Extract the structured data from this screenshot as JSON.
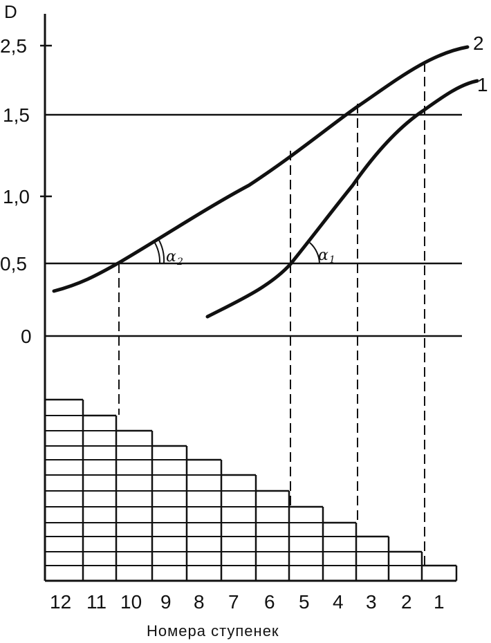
{
  "y_axis": {
    "label": "D",
    "ticks": [
      "2,5",
      "1,5",
      "1,0",
      "0,5",
      "0"
    ]
  },
  "curves": [
    {
      "label": "1",
      "angle_symbol": "α",
      "angle_index": "1"
    },
    {
      "label": "2",
      "angle_symbol": "α",
      "angle_index": "2"
    }
  ],
  "steps": {
    "labels": [
      "12",
      "11",
      "10",
      "9",
      "8",
      "7",
      "6",
      "5",
      "4",
      "3",
      "2",
      "1"
    ],
    "caption": "Номера ступенек"
  }
}
